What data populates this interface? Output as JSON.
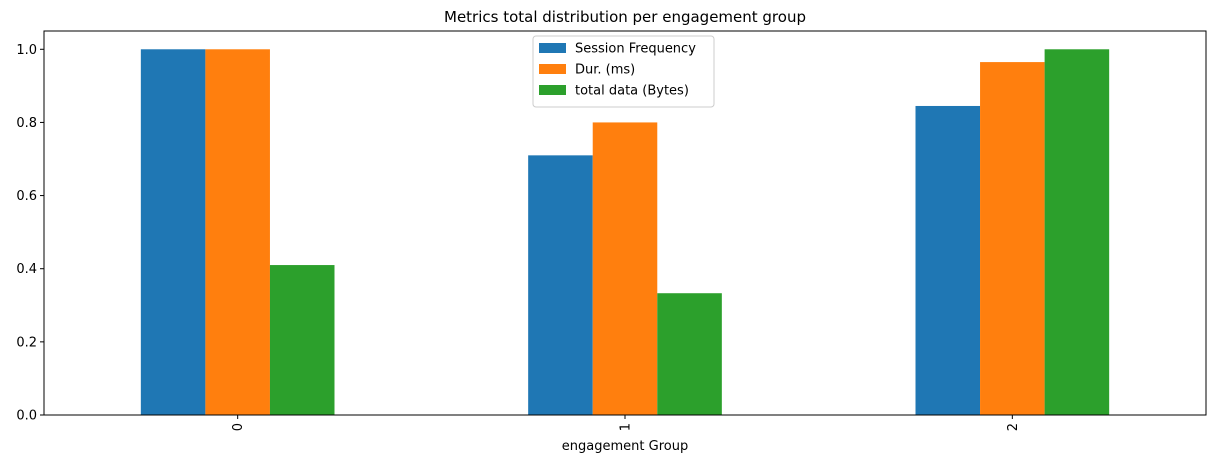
{
  "chart_data": {
    "type": "bar",
    "title": "Metrics total distribution per engagement group",
    "xlabel": "engagement Group",
    "ylabel": "",
    "categories": [
      "0",
      "1",
      "2"
    ],
    "series": [
      {
        "name": "Session Frequency",
        "color": "#1f77b4",
        "values": [
          1.0,
          0.71,
          0.845
        ]
      },
      {
        "name": "Dur. (ms)",
        "color": "#ff7f0e",
        "values": [
          1.0,
          0.8,
          0.965
        ]
      },
      {
        "name": "total data (Bytes)",
        "color": "#2ca02c",
        "values": [
          0.41,
          0.333,
          1.0
        ]
      }
    ],
    "ylim": [
      0,
      1.05
    ],
    "yticks": [
      0.0,
      0.2,
      0.4,
      0.6,
      0.8,
      1.0
    ],
    "ytick_labels": [
      "0.0",
      "0.2",
      "0.4",
      "0.6",
      "0.8",
      "1.0"
    ],
    "xtick_rotation": "vertical",
    "grid": false,
    "legend_position": "top-center"
  }
}
